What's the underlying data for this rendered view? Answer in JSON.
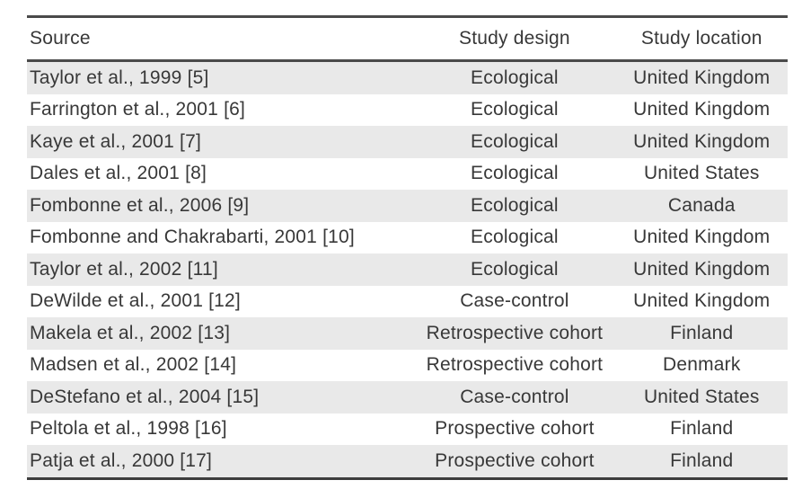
{
  "table": {
    "columns": [
      {
        "label": "Source"
      },
      {
        "label": "Study design"
      },
      {
        "label": "Study location"
      }
    ],
    "rows": [
      {
        "source": "Taylor et al., 1999 [5]",
        "design": "Ecological",
        "location": "United Kingdom"
      },
      {
        "source": "Farrington et al., 2001 [6]",
        "design": "Ecological",
        "location": "United Kingdom"
      },
      {
        "source": "Kaye et al., 2001 [7]",
        "design": "Ecological",
        "location": "United Kingdom"
      },
      {
        "source": "Dales et al., 2001 [8]",
        "design": "Ecological",
        "location": "United States"
      },
      {
        "source": "Fombonne et al., 2006 [9]",
        "design": "Ecological",
        "location": "Canada"
      },
      {
        "source": "Fombonne and Chakrabarti, 2001 [10]",
        "design": "Ecological",
        "location": "United Kingdom"
      },
      {
        "source": "Taylor et al., 2002 [11]",
        "design": "Ecological",
        "location": "United Kingdom"
      },
      {
        "source": "DeWilde et al., 2001 [12]",
        "design": "Case-control",
        "location": "United Kingdom"
      },
      {
        "source": "Makela et al., 2002 [13]",
        "design": "Retrospective cohort",
        "location": "Finland"
      },
      {
        "source": "Madsen et al., 2002 [14]",
        "design": "Retrospective cohort",
        "location": "Denmark"
      },
      {
        "source": "DeStefano et al., 2004 [15]",
        "design": "Case-control",
        "location": "United States"
      },
      {
        "source": "Peltola et al., 1998 [16]",
        "design": "Prospective cohort",
        "location": "Finland"
      },
      {
        "source": "Patja et al., 2000 [17]",
        "design": "Prospective cohort",
        "location": "Finland"
      }
    ]
  },
  "colors": {
    "row_stripe": "#e9e9e9",
    "rule": "#4a4a4a",
    "text": "#383838",
    "background": "#ffffff"
  }
}
